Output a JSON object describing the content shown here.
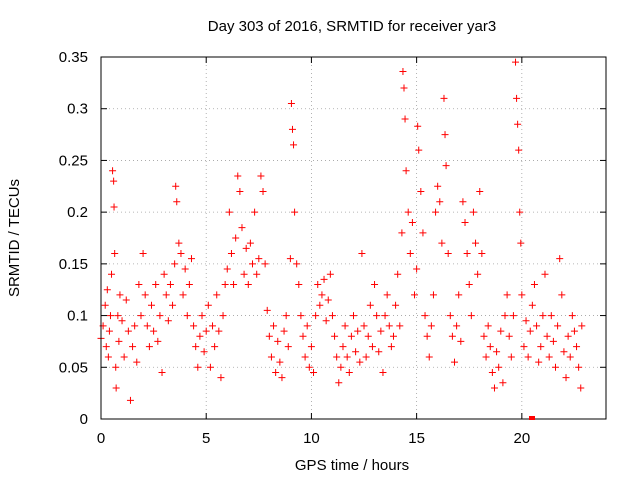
{
  "chart_data": {
    "type": "scatter",
    "title": "Day 303 of 2016, SRMTID for receiver yar3",
    "xlabel": "GPS time / hours",
    "ylabel": "SRMTID / TECUs",
    "xlim": [
      0,
      24
    ],
    "ylim": [
      0,
      0.35
    ],
    "xticks": [
      0,
      5,
      10,
      15,
      20
    ],
    "xtick_labels": [
      "0",
      "5",
      "10",
      "15",
      "20"
    ],
    "yticks": [
      0,
      0.05,
      0.1,
      0.15,
      0.2,
      0.25,
      0.3,
      0.35
    ],
    "ytick_labels": [
      "0",
      "0.05",
      "0.1",
      "0.15",
      "0.2",
      "0.25",
      "0.3",
      "0.35"
    ],
    "grid": true,
    "marker": "+",
    "color": "#ff0000",
    "series": [
      {
        "name": "SRMTID",
        "points": [
          [
            0.0,
            0.078
          ],
          [
            0.1,
            0.09
          ],
          [
            0.2,
            0.11
          ],
          [
            0.25,
            0.07
          ],
          [
            0.3,
            0.125
          ],
          [
            0.35,
            0.06
          ],
          [
            0.4,
            0.085
          ],
          [
            0.45,
            0.1
          ],
          [
            0.5,
            0.14
          ],
          [
            0.55,
            0.24
          ],
          [
            0.6,
            0.23
          ],
          [
            0.62,
            0.205
          ],
          [
            0.65,
            0.16
          ],
          [
            0.7,
            0.05
          ],
          [
            0.72,
            0.03
          ],
          [
            0.8,
            0.1
          ],
          [
            0.85,
            0.075
          ],
          [
            0.9,
            0.12
          ],
          [
            1.0,
            0.095
          ],
          [
            1.1,
            0.06
          ],
          [
            1.2,
            0.115
          ],
          [
            1.3,
            0.085
          ],
          [
            1.4,
            0.018
          ],
          [
            1.5,
            0.07
          ],
          [
            1.6,
            0.09
          ],
          [
            1.7,
            0.055
          ],
          [
            1.8,
            0.13
          ],
          [
            1.9,
            0.1
          ],
          [
            2.0,
            0.16
          ],
          [
            2.1,
            0.12
          ],
          [
            2.2,
            0.09
          ],
          [
            2.3,
            0.07
          ],
          [
            2.4,
            0.11
          ],
          [
            2.5,
            0.085
          ],
          [
            2.6,
            0.13
          ],
          [
            2.7,
            0.075
          ],
          [
            2.8,
            0.1
          ],
          [
            2.9,
            0.045
          ],
          [
            3.0,
            0.14
          ],
          [
            3.1,
            0.12
          ],
          [
            3.2,
            0.095
          ],
          [
            3.3,
            0.13
          ],
          [
            3.4,
            0.11
          ],
          [
            3.5,
            0.15
          ],
          [
            3.55,
            0.225
          ],
          [
            3.6,
            0.21
          ],
          [
            3.7,
            0.17
          ],
          [
            3.8,
            0.16
          ],
          [
            3.9,
            0.12
          ],
          [
            4.0,
            0.145
          ],
          [
            4.1,
            0.1
          ],
          [
            4.2,
            0.13
          ],
          [
            4.3,
            0.155
          ],
          [
            4.4,
            0.09
          ],
          [
            4.5,
            0.07
          ],
          [
            4.6,
            0.05
          ],
          [
            4.7,
            0.08
          ],
          [
            4.8,
            0.1
          ],
          [
            4.9,
            0.065
          ],
          [
            5.0,
            0.085
          ],
          [
            5.1,
            0.11
          ],
          [
            5.2,
            0.05
          ],
          [
            5.3,
            0.09
          ],
          [
            5.4,
            0.07
          ],
          [
            5.5,
            0.12
          ],
          [
            5.6,
            0.085
          ],
          [
            5.7,
            0.04
          ],
          [
            5.8,
            0.1
          ],
          [
            5.9,
            0.13
          ],
          [
            6.0,
            0.145
          ],
          [
            6.1,
            0.2
          ],
          [
            6.2,
            0.16
          ],
          [
            6.3,
            0.13
          ],
          [
            6.4,
            0.175
          ],
          [
            6.5,
            0.235
          ],
          [
            6.6,
            0.22
          ],
          [
            6.7,
            0.185
          ],
          [
            6.8,
            0.14
          ],
          [
            6.9,
            0.165
          ],
          [
            7.0,
            0.13
          ],
          [
            7.1,
            0.17
          ],
          [
            7.2,
            0.15
          ],
          [
            7.3,
            0.2
          ],
          [
            7.4,
            0.14
          ],
          [
            7.5,
            0.155
          ],
          [
            7.6,
            0.235
          ],
          [
            7.7,
            0.22
          ],
          [
            7.8,
            0.15
          ],
          [
            7.9,
            0.105
          ],
          [
            8.0,
            0.08
          ],
          [
            8.1,
            0.06
          ],
          [
            8.2,
            0.09
          ],
          [
            8.3,
            0.045
          ],
          [
            8.4,
            0.075
          ],
          [
            8.5,
            0.055
          ],
          [
            8.6,
            0.04
          ],
          [
            8.7,
            0.085
          ],
          [
            8.8,
            0.1
          ],
          [
            8.9,
            0.07
          ],
          [
            9.0,
            0.155
          ],
          [
            9.05,
            0.305
          ],
          [
            9.1,
            0.28
          ],
          [
            9.15,
            0.265
          ],
          [
            9.2,
            0.2
          ],
          [
            9.3,
            0.15
          ],
          [
            9.4,
            0.13
          ],
          [
            9.5,
            0.1
          ],
          [
            9.6,
            0.08
          ],
          [
            9.7,
            0.06
          ],
          [
            9.8,
            0.09
          ],
          [
            9.9,
            0.05
          ],
          [
            10.0,
            0.07
          ],
          [
            10.1,
            0.045
          ],
          [
            10.2,
            0.1
          ],
          [
            10.3,
            0.13
          ],
          [
            10.4,
            0.11
          ],
          [
            10.5,
            0.12
          ],
          [
            10.6,
            0.135
          ],
          [
            10.7,
            0.095
          ],
          [
            10.8,
            0.115
          ],
          [
            10.9,
            0.14
          ],
          [
            11.0,
            0.1
          ],
          [
            11.1,
            0.08
          ],
          [
            11.2,
            0.06
          ],
          [
            11.3,
            0.035
          ],
          [
            11.4,
            0.05
          ],
          [
            11.5,
            0.07
          ],
          [
            11.6,
            0.09
          ],
          [
            11.7,
            0.06
          ],
          [
            11.8,
            0.045
          ],
          [
            11.9,
            0.08
          ],
          [
            12.0,
            0.1
          ],
          [
            12.1,
            0.065
          ],
          [
            12.2,
            0.085
          ],
          [
            12.3,
            0.055
          ],
          [
            12.4,
            0.16
          ],
          [
            12.5,
            0.09
          ],
          [
            12.6,
            0.06
          ],
          [
            12.7,
            0.08
          ],
          [
            12.8,
            0.11
          ],
          [
            12.9,
            0.07
          ],
          [
            13.0,
            0.13
          ],
          [
            13.1,
            0.1
          ],
          [
            13.2,
            0.065
          ],
          [
            13.3,
            0.085
          ],
          [
            13.4,
            0.045
          ],
          [
            13.5,
            0.1
          ],
          [
            13.6,
            0.12
          ],
          [
            13.7,
            0.09
          ],
          [
            13.8,
            0.07
          ],
          [
            13.9,
            0.08
          ],
          [
            14.0,
            0.11
          ],
          [
            14.1,
            0.14
          ],
          [
            14.2,
            0.09
          ],
          [
            14.3,
            0.18
          ],
          [
            14.35,
            0.336
          ],
          [
            14.4,
            0.32
          ],
          [
            14.45,
            0.29
          ],
          [
            14.5,
            0.24
          ],
          [
            14.6,
            0.2
          ],
          [
            14.7,
            0.16
          ],
          [
            14.8,
            0.19
          ],
          [
            14.9,
            0.12
          ],
          [
            15.0,
            0.145
          ],
          [
            15.05,
            0.283
          ],
          [
            15.1,
            0.26
          ],
          [
            15.2,
            0.22
          ],
          [
            15.3,
            0.18
          ],
          [
            15.4,
            0.1
          ],
          [
            15.5,
            0.08
          ],
          [
            15.6,
            0.06
          ],
          [
            15.7,
            0.09
          ],
          [
            15.8,
            0.12
          ],
          [
            15.9,
            0.2
          ],
          [
            16.0,
            0.225
          ],
          [
            16.1,
            0.21
          ],
          [
            16.2,
            0.17
          ],
          [
            16.3,
            0.31
          ],
          [
            16.35,
            0.275
          ],
          [
            16.4,
            0.245
          ],
          [
            16.5,
            0.16
          ],
          [
            16.6,
            0.1
          ],
          [
            16.7,
            0.08
          ],
          [
            16.8,
            0.055
          ],
          [
            16.9,
            0.09
          ],
          [
            17.0,
            0.12
          ],
          [
            17.1,
            0.075
          ],
          [
            17.2,
            0.21
          ],
          [
            17.3,
            0.19
          ],
          [
            17.4,
            0.16
          ],
          [
            17.5,
            0.13
          ],
          [
            17.6,
            0.1
          ],
          [
            17.7,
            0.2
          ],
          [
            17.8,
            0.17
          ],
          [
            17.9,
            0.14
          ],
          [
            18.0,
            0.22
          ],
          [
            18.1,
            0.16
          ],
          [
            18.2,
            0.08
          ],
          [
            18.3,
            0.06
          ],
          [
            18.4,
            0.09
          ],
          [
            18.5,
            0.07
          ],
          [
            18.6,
            0.045
          ],
          [
            18.7,
            0.03
          ],
          [
            18.8,
            0.065
          ],
          [
            18.9,
            0.05
          ],
          [
            19.0,
            0.085
          ],
          [
            19.1,
            0.035
          ],
          [
            19.2,
            0.1
          ],
          [
            19.3,
            0.12
          ],
          [
            19.4,
            0.08
          ],
          [
            19.5,
            0.06
          ],
          [
            19.6,
            0.1
          ],
          [
            19.7,
            0.345
          ],
          [
            19.75,
            0.31
          ],
          [
            19.8,
            0.285
          ],
          [
            19.85,
            0.26
          ],
          [
            19.9,
            0.2
          ],
          [
            19.95,
            0.17
          ],
          [
            20.0,
            0.12
          ],
          [
            20.1,
            0.07
          ],
          [
            20.2,
            0.095
          ],
          [
            20.3,
            0.06
          ],
          [
            20.4,
            0.085
          ],
          [
            20.5,
            0.11
          ],
          [
            20.6,
            0.13
          ],
          [
            20.7,
            0.09
          ],
          [
            20.8,
            0.055
          ],
          [
            20.9,
            0.07
          ],
          [
            21.0,
            0.1
          ],
          [
            21.1,
            0.14
          ],
          [
            21.2,
            0.08
          ],
          [
            21.3,
            0.06
          ],
          [
            21.4,
            0.1
          ],
          [
            21.5,
            0.075
          ],
          [
            21.6,
            0.05
          ],
          [
            21.7,
            0.09
          ],
          [
            21.8,
            0.155
          ],
          [
            21.9,
            0.12
          ],
          [
            22.0,
            0.065
          ],
          [
            22.1,
            0.04
          ],
          [
            22.2,
            0.08
          ],
          [
            22.3,
            0.06
          ],
          [
            22.4,
            0.1
          ],
          [
            22.5,
            0.085
          ],
          [
            22.6,
            0.07
          ],
          [
            22.7,
            0.05
          ],
          [
            22.8,
            0.03
          ],
          [
            22.85,
            0.09
          ]
        ]
      }
    ]
  }
}
